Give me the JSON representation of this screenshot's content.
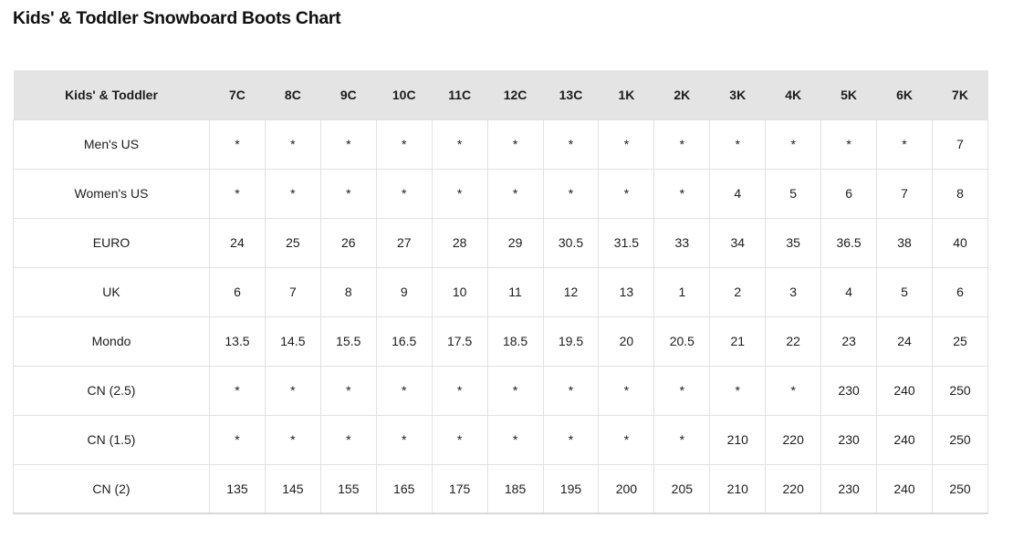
{
  "colors": {
    "title": "#111111",
    "text": "#1c1c1c",
    "header_bg": "#e4e4e4",
    "border": "#e1e1e1",
    "bottom_border": "#d9d9d9"
  },
  "chart_data": {
    "type": "table",
    "title": "Kids' & Toddler Snowboard Boots Chart",
    "columns": [
      "Kids' & Toddler",
      "7C",
      "8C",
      "9C",
      "10C",
      "11C",
      "12C",
      "13C",
      "1K",
      "2K",
      "3K",
      "4K",
      "5K",
      "6K",
      "7K"
    ],
    "rows": [
      {
        "label": "Men's US",
        "values": [
          "*",
          "*",
          "*",
          "*",
          "*",
          "*",
          "*",
          "*",
          "*",
          "*",
          "*",
          "*",
          "*",
          "7"
        ]
      },
      {
        "label": "Women's US",
        "values": [
          "*",
          "*",
          "*",
          "*",
          "*",
          "*",
          "*",
          "*",
          "*",
          "4",
          "5",
          "6",
          "7",
          "8"
        ]
      },
      {
        "label": "EURO",
        "values": [
          "24",
          "25",
          "26",
          "27",
          "28",
          "29",
          "30.5",
          "31.5",
          "33",
          "34",
          "35",
          "36.5",
          "38",
          "40"
        ]
      },
      {
        "label": "UK",
        "values": [
          "6",
          "7",
          "8",
          "9",
          "10",
          "11",
          "12",
          "13",
          "1",
          "2",
          "3",
          "4",
          "5",
          "6"
        ]
      },
      {
        "label": "Mondo",
        "values": [
          "13.5",
          "14.5",
          "15.5",
          "16.5",
          "17.5",
          "18.5",
          "19.5",
          "20",
          "20.5",
          "21",
          "22",
          "23",
          "24",
          "25"
        ]
      },
      {
        "label": "CN (2.5)",
        "values": [
          "*",
          "*",
          "*",
          "*",
          "*",
          "*",
          "*",
          "*",
          "*",
          "*",
          "*",
          "230",
          "240",
          "250"
        ]
      },
      {
        "label": "CN (1.5)",
        "values": [
          "*",
          "*",
          "*",
          "*",
          "*",
          "*",
          "*",
          "*",
          "*",
          "210",
          "220",
          "230",
          "240",
          "250"
        ]
      },
      {
        "label": "CN (2)",
        "values": [
          "135",
          "145",
          "155",
          "165",
          "175",
          "185",
          "195",
          "200",
          "205",
          "210",
          "220",
          "230",
          "240",
          "250"
        ]
      }
    ]
  }
}
